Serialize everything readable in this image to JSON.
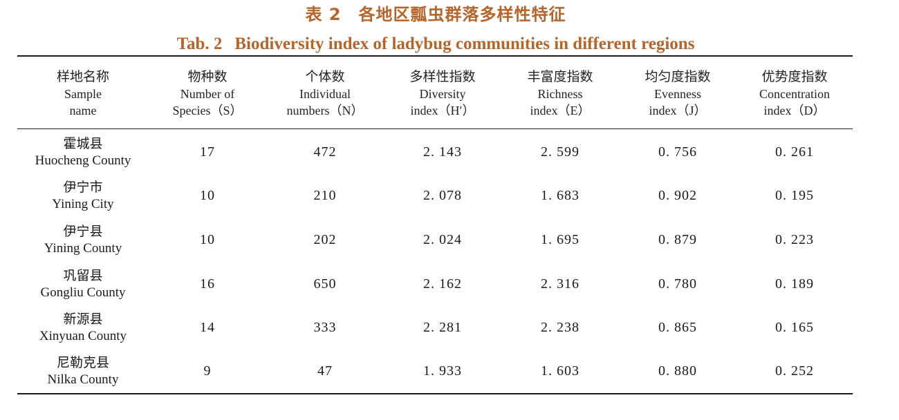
{
  "table": {
    "caption_zh": "表 2　各地区瓢虫群落多样性特征",
    "caption_en_label": "Tab. 2",
    "caption_en_title": "Biodiversity index of ladybug communities in different regions",
    "headers": [
      {
        "zh": "样地名称",
        "en1": "Sample",
        "en2": "name"
      },
      {
        "zh": "物种数",
        "en1": "Number of",
        "en2": "Species（S）"
      },
      {
        "zh": "个体数",
        "en1": "Individual",
        "en2": "numbers（N）"
      },
      {
        "zh": "多样性指数",
        "en1": "Diversity",
        "en2": "index（H′）"
      },
      {
        "zh": "丰富度指数",
        "en1": "Richness",
        "en2": "index（E）"
      },
      {
        "zh": "均匀度指数",
        "en1": "Evenness",
        "en2": "index（J）"
      },
      {
        "zh": "优势度指数",
        "en1": "Concentration",
        "en2": "index（D）"
      }
    ],
    "rows": [
      {
        "site_zh": "霍城县",
        "site_en": "Huocheng County",
        "species": "17",
        "individuals": "472",
        "diversity": "2. 143",
        "richness": "2. 599",
        "evenness": "0. 756",
        "concentration": "0. 261"
      },
      {
        "site_zh": "伊宁市",
        "site_en": "Yining City",
        "species": "10",
        "individuals": "210",
        "diversity": "2. 078",
        "richness": "1. 683",
        "evenness": "0. 902",
        "concentration": "0. 195"
      },
      {
        "site_zh": "伊宁县",
        "site_en": "Yining County",
        "species": "10",
        "individuals": "202",
        "diversity": "2. 024",
        "richness": "1. 695",
        "evenness": "0. 879",
        "concentration": "0. 223"
      },
      {
        "site_zh": "巩留县",
        "site_en": "Gongliu County",
        "species": "16",
        "individuals": "650",
        "diversity": "2. 162",
        "richness": "2. 316",
        "evenness": "0. 780",
        "concentration": "0. 189"
      },
      {
        "site_zh": "新源县",
        "site_en": "Xinyuan County",
        "species": "14",
        "individuals": "333",
        "diversity": "2. 281",
        "richness": "2. 238",
        "evenness": "0. 865",
        "concentration": "0. 165"
      },
      {
        "site_zh": "尼勒克县",
        "site_en": "Nilka County",
        "species": "9",
        "individuals": "47",
        "diversity": "1. 933",
        "richness": "1. 603",
        "evenness": "0. 880",
        "concentration": "0. 252"
      }
    ]
  }
}
